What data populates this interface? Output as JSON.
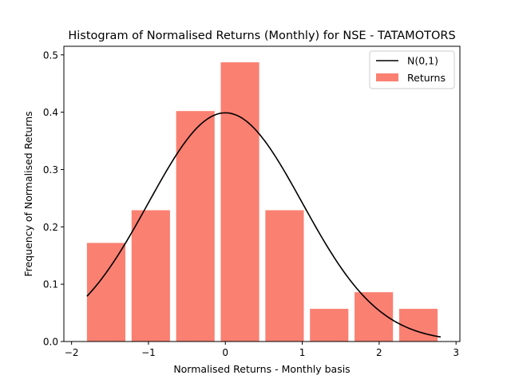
{
  "chart_data": {
    "type": "bar",
    "title": "Histogram of Normalised Returns (Monthly) for NSE - TATAMOTORS",
    "xlabel": "Normalised Returns - Monthly basis",
    "ylabel": "Frequency of Normalised Returns",
    "xlim": [
      -2.1,
      3.05
    ],
    "ylim": [
      0,
      0.515
    ],
    "xticks": [
      -2,
      -1,
      0,
      1,
      2,
      3
    ],
    "xtick_labels": [
      "−2",
      "−1",
      "0",
      "1",
      "2",
      "3"
    ],
    "yticks": [
      0.0,
      0.1,
      0.2,
      0.3,
      0.4,
      0.5
    ],
    "ytick_labels": [
      "0.0",
      "0.1",
      "0.2",
      "0.3",
      "0.4",
      "0.5"
    ],
    "grid": false,
    "legend_position": "top-right",
    "bar_width": 0.5,
    "bars": [
      {
        "x": -1.55,
        "value": 0.172
      },
      {
        "x": -0.97,
        "value": 0.229
      },
      {
        "x": -0.39,
        "value": 0.402
      },
      {
        "x": 0.19,
        "value": 0.487
      },
      {
        "x": 0.77,
        "value": 0.229
      },
      {
        "x": 1.35,
        "value": 0.057
      },
      {
        "x": 1.93,
        "value": 0.086
      },
      {
        "x": 2.51,
        "value": 0.057
      }
    ],
    "curve": {
      "mu": 0,
      "sigma": 1,
      "x_start": -1.8,
      "x_end": 2.8
    },
    "series": [
      {
        "name": "N(0,1)",
        "kind": "line",
        "color": "#000000"
      },
      {
        "name": "Returns",
        "kind": "bar",
        "color": "#fa8072"
      }
    ]
  }
}
